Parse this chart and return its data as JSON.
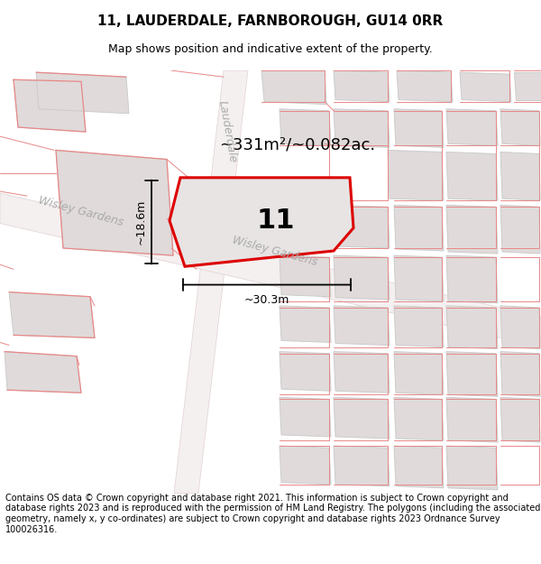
{
  "title": "11, LAUDERDALE, FARNBOROUGH, GU14 0RR",
  "subtitle": "Map shows position and indicative extent of the property.",
  "footer": "Contains OS data © Crown copyright and database right 2021. This information is subject to Crown copyright and database rights 2023 and is reproduced with the permission of HM Land Registry. The polygons (including the associated geometry, namely x, y co-ordinates) are subject to Crown copyright and database rights 2023 Ordnance Survey 100026316.",
  "area_label": "~331m²/~0.082ac.",
  "plot_number": "11",
  "dim_width": "~30.3m",
  "dim_height": "~18.6m",
  "street_wisley_left": "Wisley Gardens",
  "street_lauderdale": "Lauderdale",
  "street_wisley_plot": "Wisley Gardens",
  "bg_color": "#ffffff",
  "building_fill": "#e0dada",
  "building_edge": "#cccccc",
  "road_line": "#e8c8c8",
  "plot_fill": "#e8e4e4",
  "plot_outline": "#dd0000",
  "title_fontsize": 11,
  "subtitle_fontsize": 9,
  "footer_fontsize": 7.0,
  "map_facecolor": "#ffffff"
}
